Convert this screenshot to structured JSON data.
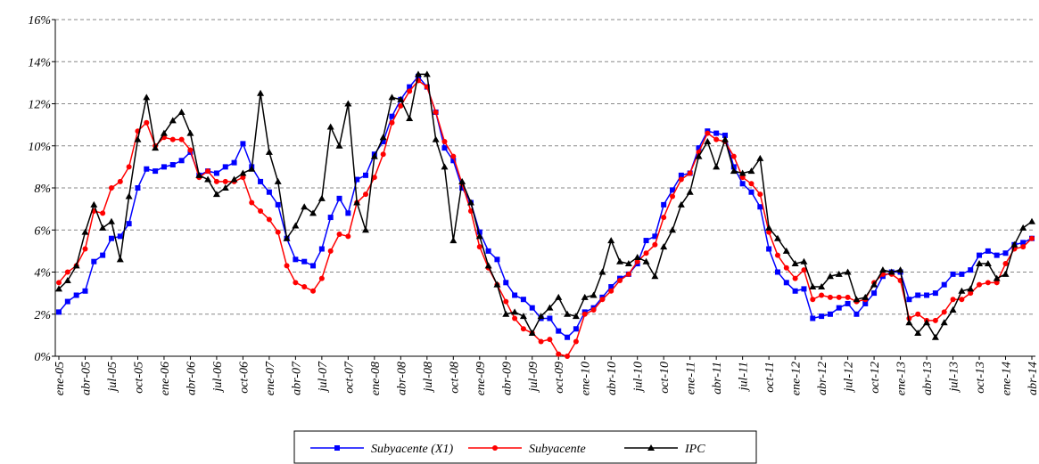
{
  "chart_data": {
    "type": "line",
    "categories": [
      "ene-05",
      null,
      null,
      "abr-05",
      null,
      null,
      "jul-05",
      null,
      null,
      "oct-05",
      null,
      null,
      "ene-06",
      null,
      null,
      "abr-06",
      null,
      null,
      "jul-06",
      null,
      null,
      "oct-06",
      null,
      null,
      "ene-07",
      null,
      null,
      "abr-07",
      null,
      null,
      "jul-07",
      null,
      null,
      "oct-07",
      null,
      null,
      "ene-08",
      null,
      null,
      "abr-08",
      null,
      null,
      "jul-08",
      null,
      null,
      "oct-08",
      null,
      null,
      "ene-09",
      null,
      null,
      "abr-09",
      null,
      null,
      "jul-09",
      null,
      null,
      "oct-09",
      null,
      null,
      "ene-10",
      null,
      null,
      "abr-10",
      null,
      null,
      "jul-10",
      null,
      null,
      "oct-10",
      null,
      null,
      "ene-11",
      null,
      null,
      "abr-11",
      null,
      null,
      "jul-11",
      null,
      null,
      "oct-11",
      null,
      null,
      "ene-12",
      null,
      null,
      "abr-12",
      null,
      null,
      "jul-12",
      null,
      null,
      "oct-12",
      null,
      null,
      "ene-13",
      null,
      null,
      "abr-13",
      null,
      null,
      "jul-13",
      null,
      null,
      "oct-13",
      null,
      null,
      "ene-14",
      null,
      null,
      "abr-14"
    ],
    "series": [
      {
        "name": "Subyacente (X1)",
        "color": "#0000ff",
        "marker": "square",
        "values": [
          2.1,
          2.6,
          2.9,
          3.1,
          4.5,
          4.8,
          5.6,
          5.7,
          6.3,
          8.0,
          8.9,
          8.8,
          9.0,
          9.1,
          9.3,
          9.7,
          8.6,
          8.8,
          8.7,
          9.0,
          9.2,
          10.1,
          9.0,
          8.3,
          7.8,
          7.2,
          5.6,
          4.6,
          4.5,
          4.3,
          5.1,
          6.6,
          7.5,
          6.8,
          8.4,
          8.6,
          9.6,
          10.2,
          11.4,
          12.2,
          12.8,
          13.3,
          12.8,
          11.6,
          9.9,
          9.3,
          8.0,
          7.3,
          5.9,
          5.0,
          4.6,
          3.5,
          2.9,
          2.7,
          2.3,
          1.8,
          1.8,
          1.2,
          0.9,
          1.3,
          2.1,
          2.3,
          2.8,
          3.3,
          3.7,
          3.9,
          4.4,
          5.5,
          5.7,
          7.2,
          7.9,
          8.6,
          8.7,
          9.9,
          10.7,
          10.6,
          10.5,
          9.0,
          8.2,
          7.8,
          7.1,
          5.1,
          4.0,
          3.5,
          3.1,
          3.2,
          1.8,
          1.9,
          2.0,
          2.3,
          2.5,
          2.0,
          2.5,
          3.0,
          3.8,
          4.0,
          4.0,
          2.7,
          2.9,
          2.9,
          3.0,
          3.4,
          3.9,
          3.9,
          4.1,
          4.8,
          5.0,
          4.8,
          4.9,
          5.3,
          5.4,
          5.6
        ]
      },
      {
        "name": "Subyacente",
        "color": "#ff0000",
        "marker": "circle",
        "values": [
          3.5,
          4.0,
          4.3,
          5.1,
          6.9,
          6.8,
          8.0,
          8.3,
          9.0,
          10.7,
          11.1,
          10.0,
          10.4,
          10.3,
          10.3,
          9.8,
          8.5,
          8.8,
          8.3,
          8.3,
          8.3,
          8.5,
          7.3,
          6.9,
          6.5,
          5.9,
          4.3,
          3.5,
          3.3,
          3.1,
          3.7,
          5.0,
          5.8,
          5.7,
          7.3,
          7.7,
          8.5,
          9.6,
          11.1,
          11.9,
          12.6,
          13.1,
          12.8,
          11.6,
          10.2,
          9.5,
          8.2,
          6.9,
          5.2,
          4.2,
          3.4,
          2.6,
          1.8,
          1.3,
          1.1,
          0.7,
          0.8,
          0.1,
          0.0,
          0.7,
          2.0,
          2.2,
          2.7,
          3.1,
          3.6,
          3.9,
          4.5,
          4.9,
          5.3,
          6.6,
          7.6,
          8.4,
          8.7,
          9.7,
          10.6,
          10.3,
          10.2,
          9.5,
          8.5,
          8.2,
          7.7,
          5.9,
          4.8,
          4.2,
          3.7,
          4.1,
          2.7,
          2.9,
          2.8,
          2.8,
          2.8,
          2.6,
          2.7,
          3.5,
          3.9,
          3.9,
          3.6,
          1.8,
          2.0,
          1.7,
          1.7,
          2.1,
          2.7,
          2.7,
          3.0,
          3.4,
          3.5,
          3.5,
          4.4,
          5.1,
          5.2,
          5.6
        ]
      },
      {
        "name": "IPC",
        "color": "#000000",
        "marker": "triangle",
        "values": [
          3.2,
          3.6,
          4.3,
          5.9,
          7.2,
          6.1,
          6.4,
          4.6,
          7.6,
          10.3,
          12.3,
          9.9,
          10.6,
          11.2,
          11.6,
          10.6,
          8.6,
          8.4,
          7.7,
          8.0,
          8.4,
          8.7,
          8.9,
          12.5,
          9.7,
          8.3,
          5.6,
          6.2,
          7.1,
          6.8,
          7.5,
          10.9,
          10.0,
          12.0,
          7.3,
          6.0,
          9.5,
          10.4,
          12.3,
          12.2,
          11.3,
          13.4,
          13.4,
          10.3,
          9.0,
          5.5,
          8.3,
          7.3,
          5.7,
          4.3,
          3.4,
          2.0,
          2.1,
          1.9,
          1.1,
          1.9,
          2.3,
          2.8,
          2.0,
          1.9,
          2.8,
          2.9,
          4.0,
          5.5,
          4.5,
          4.4,
          4.7,
          4.5,
          3.8,
          5.2,
          6.0,
          7.2,
          7.8,
          9.5,
          10.2,
          9.0,
          10.3,
          8.8,
          8.7,
          8.8,
          9.4,
          6.1,
          5.6,
          5.0,
          4.4,
          4.5,
          3.3,
          3.3,
          3.8,
          3.9,
          4.0,
          2.7,
          2.8,
          3.4,
          4.1,
          4.0,
          4.1,
          1.6,
          1.1,
          1.6,
          0.9,
          1.6,
          2.2,
          3.1,
          3.2,
          4.4,
          4.4,
          3.7,
          3.9,
          5.3,
          6.1,
          6.4
        ]
      }
    ],
    "ylim": [
      0,
      16
    ],
    "yticks": [
      {
        "value": 0,
        "label": "0%"
      },
      {
        "value": 2,
        "label": "2%"
      },
      {
        "value": 4,
        "label": "4%"
      },
      {
        "value": 6,
        "label": "6%"
      },
      {
        "value": 8,
        "label": "8%"
      },
      {
        "value": 10,
        "label": "10%"
      },
      {
        "value": 12,
        "label": "12%"
      },
      {
        "value": 14,
        "label": "14%"
      },
      {
        "value": 16,
        "label": "16%"
      }
    ],
    "grid": true,
    "legend": "bottom"
  }
}
